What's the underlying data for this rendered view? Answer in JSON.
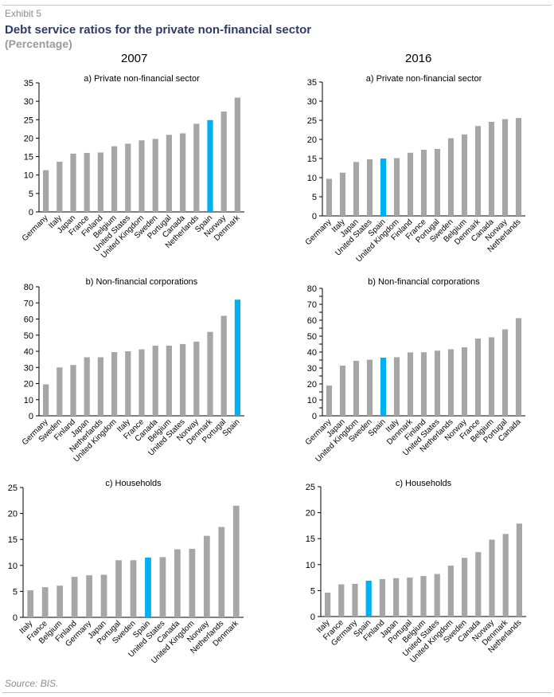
{
  "header": {
    "exhibit": "Exhibit 5",
    "title": "Debt service ratios for the private non-financial sector",
    "subtitle": "(Percentage)"
  },
  "columns": [
    "2007",
    "2016"
  ],
  "footer": {
    "source": "Source: BIS."
  },
  "colors": {
    "bar": "#a6a6a6",
    "highlight": "#00b0f0",
    "axis": "#000000"
  },
  "chart_data": [
    {
      "id": "c2007a",
      "type": "bar",
      "title": "a) Private non-financial sector",
      "ylim": [
        0,
        35
      ],
      "yticks": [
        0,
        5,
        10,
        15,
        20,
        25,
        30,
        35
      ],
      "highlight": "Spain",
      "categories": [
        "Germany",
        "Italy",
        "Japan",
        "France",
        "Finland",
        "Belgium",
        "United States",
        "United Kingdom",
        "Sweden",
        "Portugal",
        "Canada",
        "Netherlands",
        "Spain",
        "Norway",
        "Denmark"
      ],
      "values": [
        11.3,
        13.6,
        15.8,
        16.0,
        16.1,
        17.8,
        18.5,
        19.4,
        19.8,
        20.9,
        21.3,
        23.9,
        24.9,
        27.2,
        31.0
      ]
    },
    {
      "id": "c2016a",
      "type": "bar",
      "title": "a) Private non-financial sector",
      "ylim": [
        0,
        35
      ],
      "yticks": [
        0,
        5,
        10,
        15,
        20,
        25,
        30,
        35
      ],
      "highlight": "Spain",
      "categories": [
        "Germany",
        "Italy",
        "Japan",
        "United States",
        "Spain",
        "United Kingdom",
        "Finland",
        "France",
        "Portugal",
        "Sweden",
        "Belgium",
        "Denmark",
        "Canada",
        "Norway",
        "Netherlands"
      ],
      "values": [
        9.7,
        11.3,
        14.1,
        14.8,
        15.0,
        15.1,
        16.5,
        17.3,
        17.5,
        20.3,
        21.3,
        23.5,
        24.6,
        25.3,
        25.6
      ]
    },
    {
      "id": "c2007b",
      "type": "bar",
      "title": "b) Non-financial corporations",
      "ylim": [
        0,
        80
      ],
      "yticks": [
        0,
        10,
        20,
        30,
        40,
        50,
        60,
        70,
        80
      ],
      "highlight": "Spain",
      "categories": [
        "Germany",
        "Sweden",
        "Finland",
        "Japan",
        "Netherlands",
        "United Kingdom",
        "Italy",
        "France",
        "Canada",
        "Belgium",
        "United States",
        "Norway",
        "Denmark",
        "Portugal",
        "Spain"
      ],
      "values": [
        19.5,
        30.0,
        31.5,
        36.3,
        36.3,
        39.5,
        40.0,
        41.2,
        43.5,
        43.5,
        44.5,
        46.0,
        52.0,
        62.0,
        72.0
      ]
    },
    {
      "id": "c2016b",
      "type": "bar",
      "title": "b) Non-financial corporations",
      "ylim": [
        0,
        80
      ],
      "yticks": [
        0,
        5,
        10,
        15,
        20,
        25,
        30,
        35,
        40,
        45,
        50,
        55,
        60,
        65,
        70,
        75,
        80
      ],
      "ytick_labels": [
        0,
        10,
        20,
        30,
        40,
        50,
        60,
        70,
        80
      ],
      "highlight": "Spain",
      "categories": [
        "Germany",
        "Japan",
        "United Kingdom",
        "Sweden",
        "Spain",
        "Italy",
        "Denmark",
        "Finland",
        "United States",
        "Netherlands",
        "Norway",
        "France",
        "Belgium",
        "Portugal",
        "Canada"
      ],
      "values": [
        19.0,
        31.5,
        34.5,
        35.2,
        36.5,
        36.8,
        39.8,
        39.9,
        40.9,
        41.8,
        43.0,
        48.5,
        49.3,
        54.3,
        61.3
      ]
    },
    {
      "id": "c2007c",
      "type": "bar",
      "title": "c) Households",
      "ylim": [
        0,
        25
      ],
      "yticks": [
        0,
        5,
        10,
        15,
        20,
        25
      ],
      "highlight": "Spain",
      "categories": [
        "Italy",
        "France",
        "Belgium",
        "Finland",
        "Germany",
        "Japan",
        "Portugal",
        "Sweden",
        "Spain",
        "United States",
        "Canada",
        "United Kingdom",
        "Norway",
        "Netherlands",
        "Denmark"
      ],
      "values": [
        5.2,
        5.8,
        6.1,
        7.8,
        8.1,
        8.2,
        11.0,
        11.0,
        11.5,
        11.6,
        13.1,
        13.2,
        15.7,
        17.4,
        21.5
      ]
    },
    {
      "id": "c2016c",
      "type": "bar",
      "title": "c) Households",
      "ylim": [
        0,
        25
      ],
      "yticks": [
        0,
        5,
        10,
        15,
        20,
        25
      ],
      "highlight": "Spain",
      "categories": [
        "Italy",
        "France",
        "Germany",
        "Spain",
        "Finland",
        "Japan",
        "Portugal",
        "Belgium",
        "United States",
        "United Kingdom",
        "Sweden",
        "Canada",
        "Norway",
        "Denmark",
        "Netherlands"
      ],
      "values": [
        4.6,
        6.2,
        6.3,
        6.9,
        7.2,
        7.4,
        7.5,
        7.8,
        8.2,
        9.8,
        11.3,
        12.4,
        14.8,
        15.9,
        17.9
      ]
    }
  ]
}
